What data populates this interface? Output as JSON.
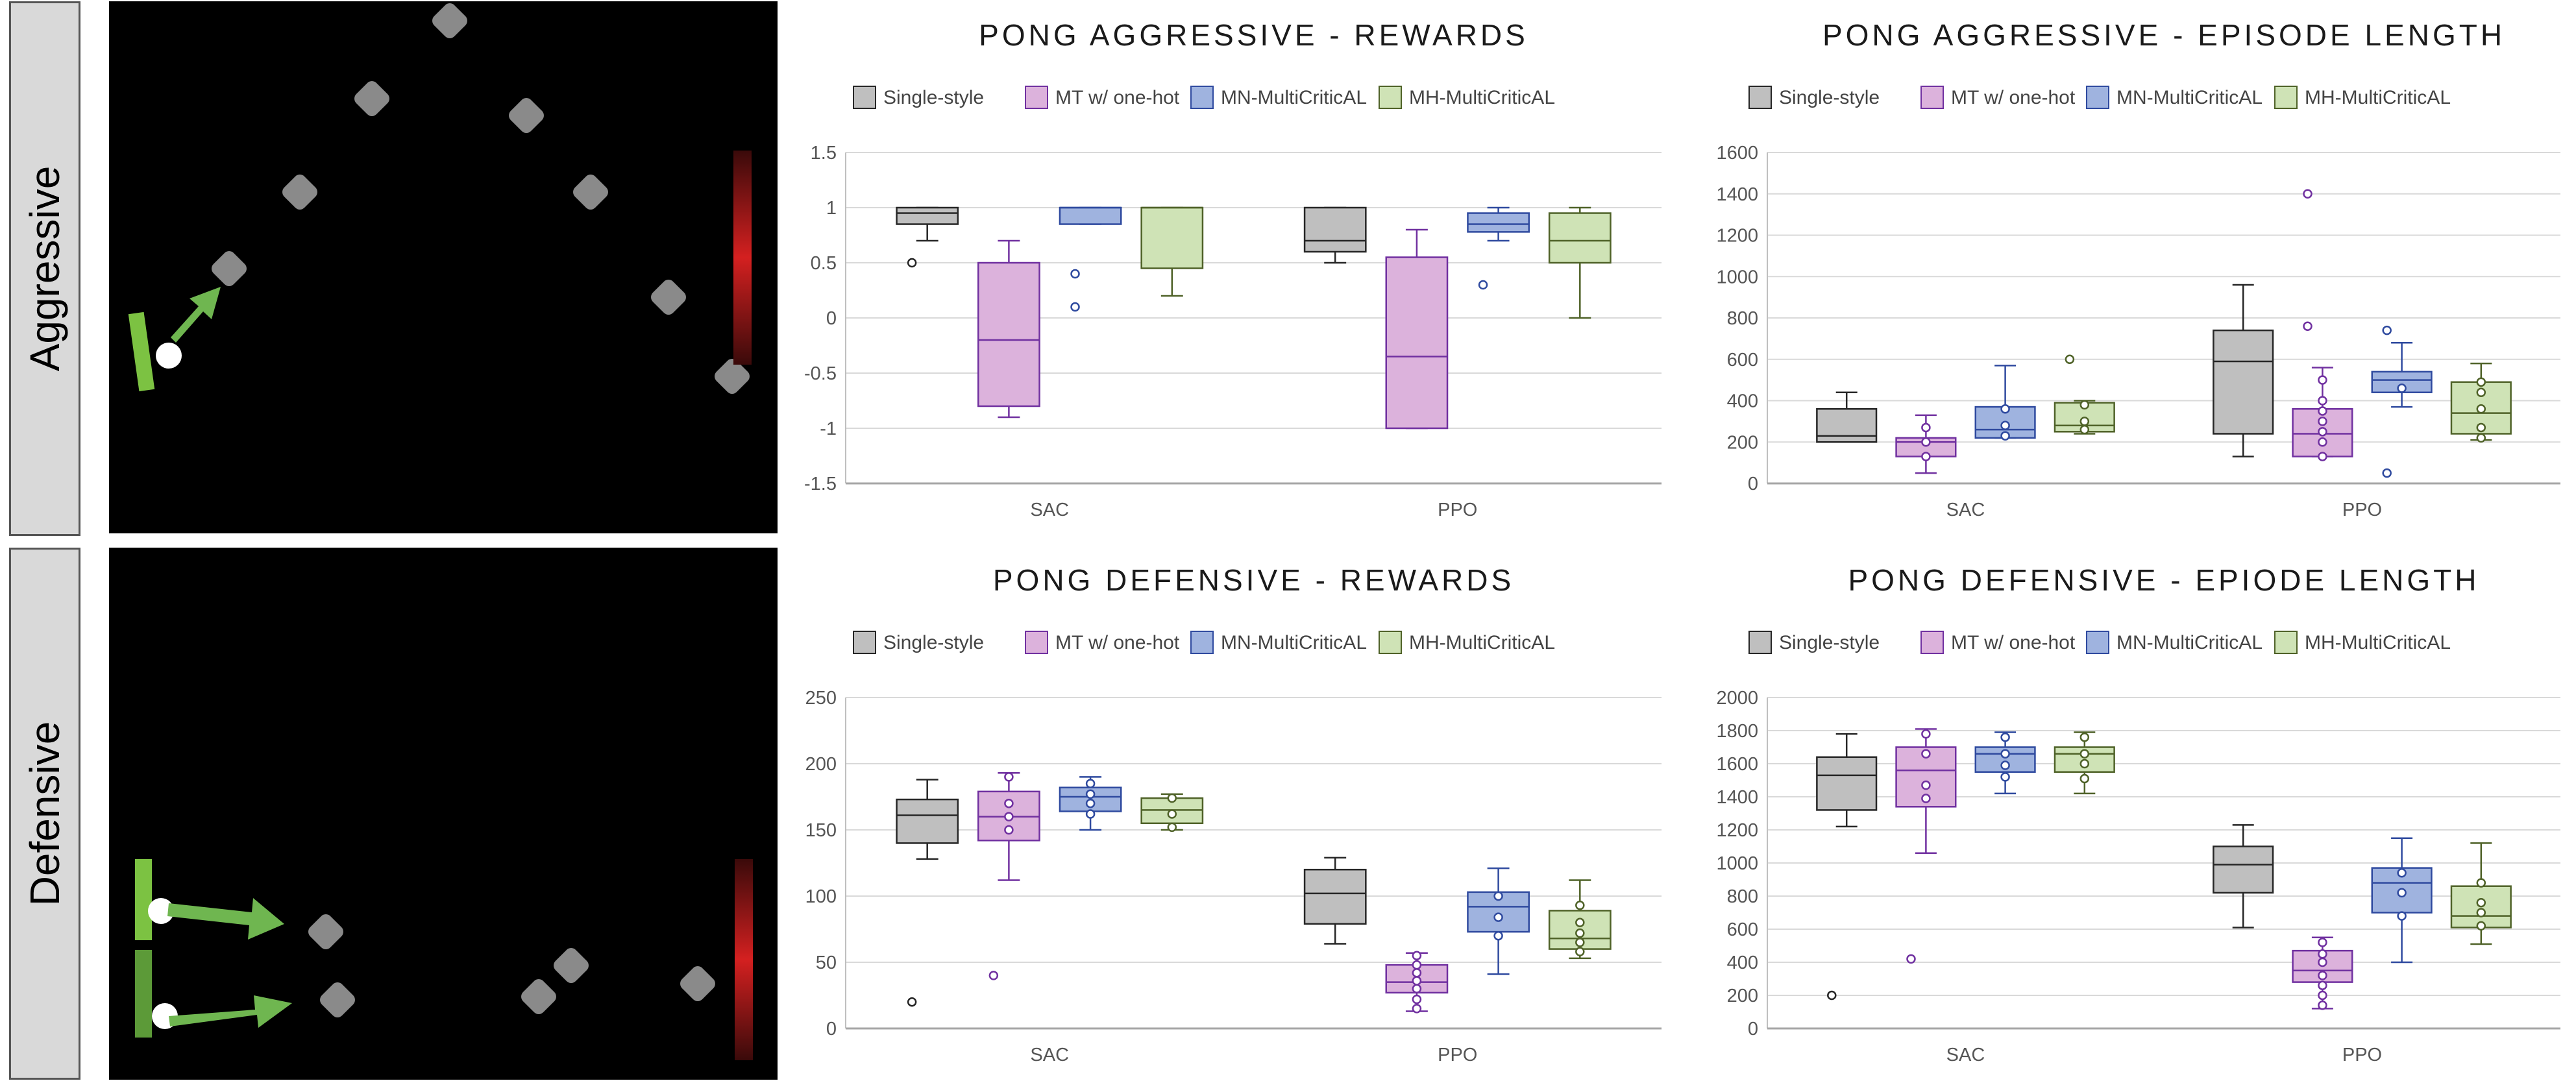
{
  "row_labels": {
    "top": "Aggressive",
    "bottom": "Defensive"
  },
  "legend_colors": {
    "Single-style": {
      "fill": "#bfbfbf",
      "stroke": "#262626"
    },
    "MT w/ one-hot": {
      "fill": "#dcb2dc",
      "stroke": "#7030a0"
    },
    "MN-MultiCriticAL": {
      "fill": "#9fb3df",
      "stroke": "#2f4a9f"
    },
    "MH-MultiCriticAL": {
      "fill": "#cfe3b6",
      "stroke": "#4f6228"
    }
  },
  "chart_data": [
    {
      "type": "box",
      "title": "PONG AGGRESSIVE - REWARDS",
      "categories": [
        "SAC",
        "PPO"
      ],
      "ylim": [
        -1.5,
        1.5
      ],
      "yticks": [
        "-1.5",
        "-1",
        "-0.5",
        "0",
        "0.5",
        "1",
        "1.5"
      ],
      "yvalues": [
        -1.5,
        -1,
        -0.5,
        0,
        0.5,
        1,
        1.5
      ],
      "grid": true,
      "legend": "top",
      "series": [
        {
          "name": "Single-style",
          "boxes": [
            {
              "min": 0.7,
              "q1": 0.85,
              "median": 0.95,
              "q3": 1.0,
              "max": 1.0,
              "points": [],
              "outliers": [
                0.5
              ]
            },
            {
              "min": 0.5,
              "q1": 0.6,
              "median": 0.7,
              "q3": 1.0,
              "max": 1.0,
              "points": [],
              "outliers": []
            }
          ]
        },
        {
          "name": "MT w/ one-hot",
          "boxes": [
            {
              "min": -0.9,
              "q1": -0.8,
              "median": -0.2,
              "q3": 0.5,
              "max": 0.7,
              "points": [],
              "outliers": []
            },
            {
              "min": -1.0,
              "q1": -1.0,
              "median": -0.35,
              "q3": 0.55,
              "max": 0.8,
              "points": [],
              "outliers": []
            }
          ]
        },
        {
          "name": "MN-MultiCriticAL",
          "boxes": [
            {
              "min": 0.85,
              "q1": 0.85,
              "median": 1.0,
              "q3": 1.0,
              "max": 1.0,
              "points": [],
              "outliers": [
                0.4,
                0.1
              ]
            },
            {
              "min": 0.7,
              "q1": 0.78,
              "median": 0.85,
              "q3": 0.95,
              "max": 1.0,
              "points": [],
              "outliers": [
                0.3
              ]
            }
          ]
        },
        {
          "name": "MH-MultiCriticAL",
          "boxes": [
            {
              "min": 0.2,
              "q1": 0.45,
              "median": 1.0,
              "q3": 1.0,
              "max": 1.0,
              "points": [],
              "outliers": []
            },
            {
              "min": 0.0,
              "q1": 0.5,
              "median": 0.7,
              "q3": 0.95,
              "max": 1.0,
              "points": [],
              "outliers": []
            }
          ]
        }
      ]
    },
    {
      "type": "box",
      "title": "PONG AGGRESSIVE - EPISODE LENGTH",
      "categories": [
        "SAC",
        "PPO"
      ],
      "ylim": [
        0,
        1600
      ],
      "yticks": [
        "0",
        "200",
        "400",
        "600",
        "800",
        "1000",
        "1200",
        "1400",
        "1600"
      ],
      "yvalues": [
        0,
        200,
        400,
        600,
        800,
        1000,
        1200,
        1400,
        1600
      ],
      "grid": true,
      "legend": "top",
      "series": [
        {
          "name": "Single-style",
          "boxes": [
            {
              "min": 200,
              "q1": 200,
              "median": 230,
              "q3": 360,
              "max": 440,
              "points": [],
              "outliers": []
            },
            {
              "min": 130,
              "q1": 240,
              "median": 590,
              "q3": 740,
              "max": 960,
              "points": [],
              "outliers": []
            }
          ]
        },
        {
          "name": "MT w/ one-hot",
          "boxes": [
            {
              "min": 50,
              "q1": 130,
              "median": 200,
              "q3": 220,
              "max": 330,
              "points": [
                270,
                200,
                130
              ],
              "outliers": []
            },
            {
              "min": 130,
              "q1": 130,
              "median": 240,
              "q3": 360,
              "max": 560,
              "points": [
                500,
                400,
                350,
                300,
                250,
                200,
                130
              ],
              "outliers": [
                1400,
                760
              ]
            }
          ]
        },
        {
          "name": "MN-MultiCriticAL",
          "boxes": [
            {
              "min": 220,
              "q1": 220,
              "median": 260,
              "q3": 370,
              "max": 570,
              "points": [
                360,
                280,
                230
              ],
              "outliers": []
            },
            {
              "min": 370,
              "q1": 440,
              "median": 500,
              "q3": 540,
              "max": 680,
              "points": [
                460
              ],
              "outliers": [
                740,
                50
              ]
            }
          ]
        },
        {
          "name": "MH-MultiCriticAL",
          "boxes": [
            {
              "min": 240,
              "q1": 250,
              "median": 280,
              "q3": 390,
              "max": 400,
              "points": [
                380,
                300,
                260
              ],
              "outliers": [
                600
              ]
            },
            {
              "min": 210,
              "q1": 240,
              "median": 340,
              "q3": 490,
              "max": 580,
              "points": [
                490,
                440,
                360,
                270,
                220
              ],
              "outliers": []
            }
          ]
        }
      ]
    },
    {
      "type": "box",
      "title": "PONG DEFENSIVE - REWARDS",
      "categories": [
        "SAC",
        "PPO"
      ],
      "ylim": [
        0,
        250
      ],
      "yticks": [
        "0",
        "50",
        "100",
        "150",
        "200",
        "250"
      ],
      "yvalues": [
        0,
        50,
        100,
        150,
        200,
        250
      ],
      "grid": true,
      "legend": "top",
      "series": [
        {
          "name": "Single-style",
          "boxes": [
            {
              "min": 128,
              "q1": 140,
              "median": 161,
              "q3": 173,
              "max": 188,
              "points": [],
              "outliers": [
                20
              ]
            },
            {
              "min": 64,
              "q1": 79,
              "median": 102,
              "q3": 120,
              "max": 129,
              "points": [],
              "outliers": []
            }
          ]
        },
        {
          "name": "MT w/ one-hot",
          "boxes": [
            {
              "min": 112,
              "q1": 142,
              "median": 160,
              "q3": 179,
              "max": 193,
              "points": [
                190,
                170,
                160,
                150
              ],
              "outliers": [
                40
              ]
            },
            {
              "min": 13,
              "q1": 27,
              "median": 35,
              "q3": 48,
              "max": 57,
              "points": [
                55,
                48,
                42,
                36,
                30,
                22,
                15
              ],
              "outliers": []
            }
          ]
        },
        {
          "name": "MN-MultiCriticAL",
          "boxes": [
            {
              "min": 150,
              "q1": 164,
              "median": 175,
              "q3": 182,
              "max": 190,
              "points": [
                185,
                177,
                170,
                162
              ],
              "outliers": []
            },
            {
              "min": 41,
              "q1": 73,
              "median": 92,
              "q3": 103,
              "max": 121,
              "points": [
                100,
                84,
                70
              ],
              "outliers": []
            }
          ]
        },
        {
          "name": "MH-MultiCriticAL",
          "boxes": [
            {
              "min": 150,
              "q1": 155,
              "median": 165,
              "q3": 174,
              "max": 177,
              "points": [
                174,
                162,
                152
              ],
              "outliers": []
            },
            {
              "min": 53,
              "q1": 60,
              "median": 68,
              "q3": 89,
              "max": 112,
              "points": [
                93,
                80,
                72,
                65,
                58
              ],
              "outliers": []
            }
          ]
        }
      ]
    },
    {
      "type": "box",
      "title": "PONG DEFENSIVE - EPIODE LENGTH",
      "categories": [
        "SAC",
        "PPO"
      ],
      "ylim": [
        0,
        2000
      ],
      "yticks": [
        "0",
        "200",
        "400",
        "600",
        "800",
        "1000",
        "1200",
        "1400",
        "1600",
        "1800",
        "2000"
      ],
      "yvalues": [
        0,
        200,
        400,
        600,
        800,
        1000,
        1200,
        1400,
        1600,
        1800,
        2000
      ],
      "grid": true,
      "legend": "top",
      "series": [
        {
          "name": "Single-style",
          "boxes": [
            {
              "min": 1220,
              "q1": 1320,
              "median": 1530,
              "q3": 1640,
              "max": 1780,
              "points": [],
              "outliers": [
                200
              ]
            },
            {
              "min": 610,
              "q1": 820,
              "median": 990,
              "q3": 1100,
              "max": 1230,
              "points": [],
              "outliers": []
            }
          ]
        },
        {
          "name": "MT w/ one-hot",
          "boxes": [
            {
              "min": 1060,
              "q1": 1340,
              "median": 1560,
              "q3": 1700,
              "max": 1810,
              "points": [
                1780,
                1660,
                1470,
                1390
              ],
              "outliers": [
                420
              ]
            },
            {
              "min": 120,
              "q1": 280,
              "median": 350,
              "q3": 470,
              "max": 550,
              "points": [
                520,
                450,
                400,
                320,
                260,
                200,
                140
              ],
              "outliers": []
            }
          ]
        },
        {
          "name": "MN-MultiCriticAL",
          "boxes": [
            {
              "min": 1420,
              "q1": 1550,
              "median": 1660,
              "q3": 1700,
              "max": 1790,
              "points": [
                1760,
                1660,
                1590,
                1520
              ],
              "outliers": []
            },
            {
              "min": 400,
              "q1": 700,
              "median": 880,
              "q3": 970,
              "max": 1150,
              "points": [
                940,
                820,
                680
              ],
              "outliers": []
            }
          ]
        },
        {
          "name": "MH-MultiCriticAL",
          "boxes": [
            {
              "min": 1420,
              "q1": 1550,
              "median": 1660,
              "q3": 1700,
              "max": 1790,
              "points": [
                1760,
                1660,
                1600,
                1510
              ],
              "outliers": []
            },
            {
              "min": 510,
              "q1": 610,
              "median": 680,
              "q3": 860,
              "max": 1120,
              "points": [
                880,
                760,
                700,
                620
              ],
              "outliers": []
            }
          ]
        }
      ]
    }
  ]
}
